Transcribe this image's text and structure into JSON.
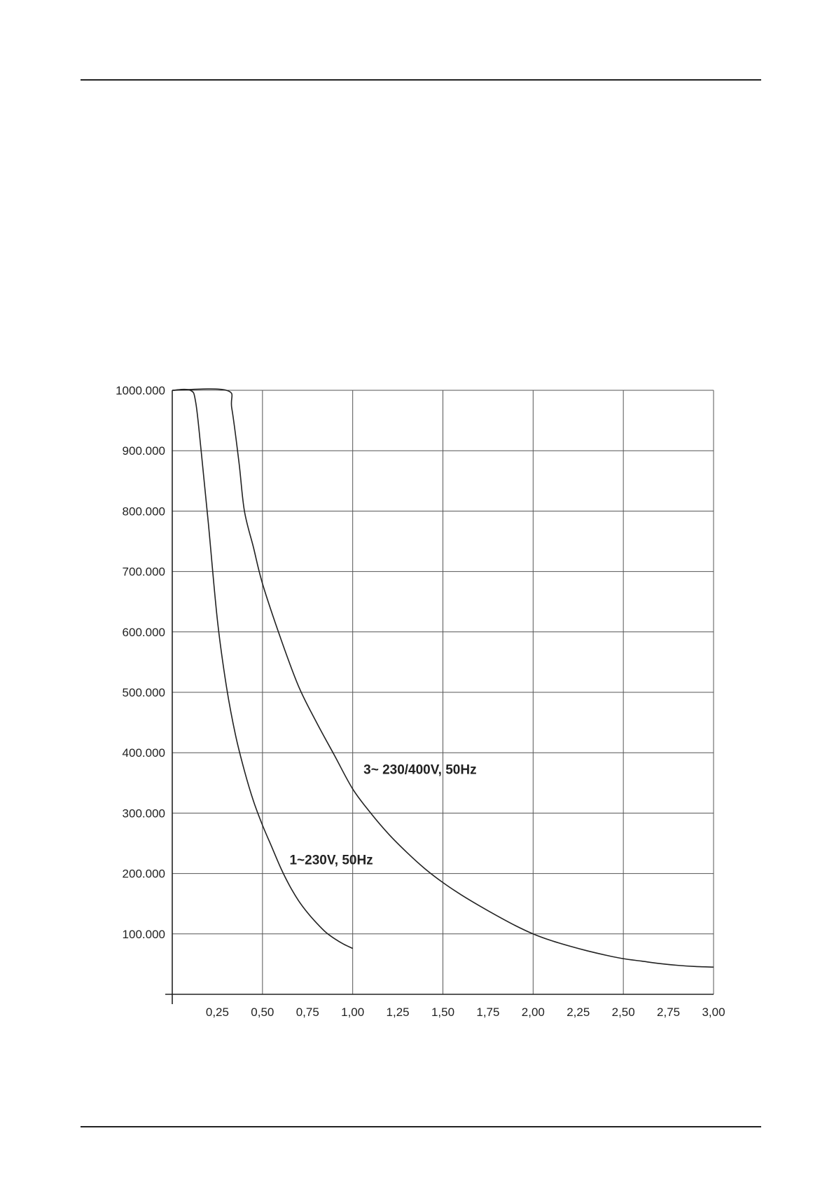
{
  "chart_data": {
    "type": "line",
    "title": "",
    "xlabel": "",
    "ylabel": "",
    "xlim": [
      0,
      3.0
    ],
    "ylim": [
      0,
      1000
    ],
    "grid": true,
    "x_ticks": [
      {
        "value": 0.25,
        "label": "0,25"
      },
      {
        "value": 0.5,
        "label": "0,50"
      },
      {
        "value": 0.75,
        "label": "0,75"
      },
      {
        "value": 1.0,
        "label": "1,00"
      },
      {
        "value": 1.25,
        "label": "1,25"
      },
      {
        "value": 1.5,
        "label": "1,50"
      },
      {
        "value": 1.75,
        "label": "1,75"
      },
      {
        "value": 2.0,
        "label": "2,00"
      },
      {
        "value": 2.25,
        "label": "2,25"
      },
      {
        "value": 2.5,
        "label": "2,50"
      },
      {
        "value": 2.75,
        "label": "2,75"
      },
      {
        "value": 3.0,
        "label": "3,00"
      }
    ],
    "y_ticks": [
      {
        "value": 100,
        "label": "100.000"
      },
      {
        "value": 200,
        "label": "200.000"
      },
      {
        "value": 300,
        "label": "300.000"
      },
      {
        "value": 400,
        "label": "400.000"
      },
      {
        "value": 500,
        "label": "500.000"
      },
      {
        "value": 600,
        "label": "600.000"
      },
      {
        "value": 700,
        "label": "700.000"
      },
      {
        "value": 800,
        "label": "800.000"
      },
      {
        "value": 900,
        "label": "900.000"
      },
      {
        "value": 1000,
        "label": "1000.000"
      }
    ],
    "series": [
      {
        "name": "1~230V, 50Hz",
        "label_at": {
          "x": 0.65,
          "y": 215
        },
        "points": [
          {
            "x": 0.0,
            "y": 1000
          },
          {
            "x": 0.1,
            "y": 1000
          },
          {
            "x": 0.13,
            "y": 980
          },
          {
            "x": 0.16,
            "y": 900
          },
          {
            "x": 0.2,
            "y": 780
          },
          {
            "x": 0.25,
            "y": 620
          },
          {
            "x": 0.3,
            "y": 510
          },
          {
            "x": 0.35,
            "y": 430
          },
          {
            "x": 0.4,
            "y": 370
          },
          {
            "x": 0.45,
            "y": 320
          },
          {
            "x": 0.5,
            "y": 280
          },
          {
            "x": 0.55,
            "y": 245
          },
          {
            "x": 0.6,
            "y": 210
          },
          {
            "x": 0.65,
            "y": 180
          },
          {
            "x": 0.7,
            "y": 155
          },
          {
            "x": 0.75,
            "y": 135
          },
          {
            "x": 0.8,
            "y": 118
          },
          {
            "x": 0.85,
            "y": 103
          },
          {
            "x": 0.9,
            "y": 92
          },
          {
            "x": 0.95,
            "y": 83
          },
          {
            "x": 1.0,
            "y": 76
          }
        ]
      },
      {
        "name": "3~ 230/400V, 50Hz",
        "label_at": {
          "x": 1.06,
          "y": 365
        },
        "points": [
          {
            "x": 0.0,
            "y": 1000
          },
          {
            "x": 0.3,
            "y": 1000
          },
          {
            "x": 0.33,
            "y": 970
          },
          {
            "x": 0.37,
            "y": 880
          },
          {
            "x": 0.4,
            "y": 800
          },
          {
            "x": 0.45,
            "y": 740
          },
          {
            "x": 0.5,
            "y": 680
          },
          {
            "x": 0.6,
            "y": 590
          },
          {
            "x": 0.7,
            "y": 510
          },
          {
            "x": 0.8,
            "y": 450
          },
          {
            "x": 0.9,
            "y": 395
          },
          {
            "x": 1.0,
            "y": 340
          },
          {
            "x": 1.1,
            "y": 300
          },
          {
            "x": 1.2,
            "y": 265
          },
          {
            "x": 1.3,
            "y": 235
          },
          {
            "x": 1.4,
            "y": 208
          },
          {
            "x": 1.5,
            "y": 185
          },
          {
            "x": 1.6,
            "y": 165
          },
          {
            "x": 1.7,
            "y": 147
          },
          {
            "x": 1.8,
            "y": 130
          },
          {
            "x": 1.9,
            "y": 114
          },
          {
            "x": 2.0,
            "y": 100
          },
          {
            "x": 2.1,
            "y": 89
          },
          {
            "x": 2.2,
            "y": 80
          },
          {
            "x": 2.3,
            "y": 72
          },
          {
            "x": 2.4,
            "y": 65
          },
          {
            "x": 2.5,
            "y": 59
          },
          {
            "x": 2.6,
            "y": 55
          },
          {
            "x": 2.7,
            "y": 51
          },
          {
            "x": 2.8,
            "y": 48
          },
          {
            "x": 2.9,
            "y": 46
          },
          {
            "x": 3.0,
            "y": 45
          }
        ]
      }
    ]
  }
}
